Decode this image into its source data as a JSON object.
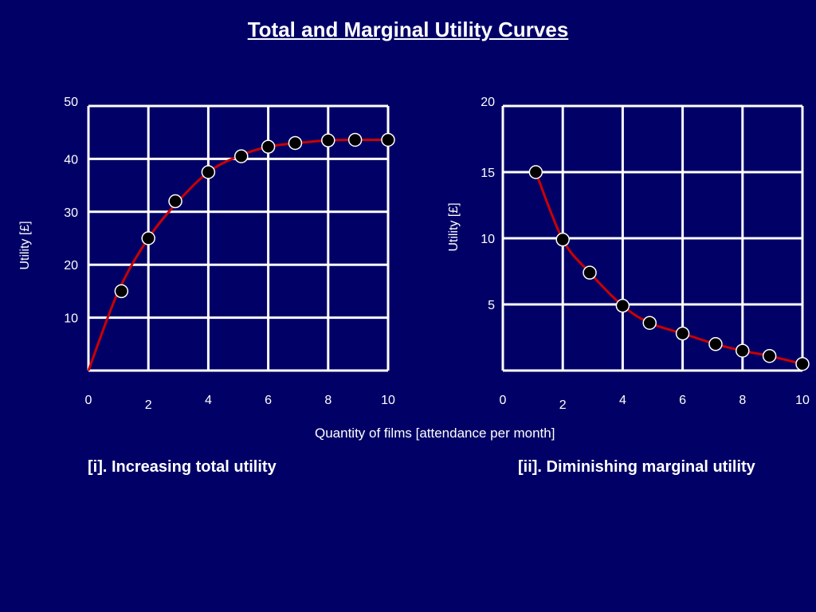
{
  "slide": {
    "title": "Total and Marginal Utility Curves",
    "shared_xlabel": "Quantity of films [attendance per month]",
    "captions": [
      "[i]. Increasing total utility",
      "[ii]. Diminishing marginal utility"
    ]
  },
  "colors": {
    "background": "#000066",
    "grid": "#ffffff",
    "curve": "#cc0000",
    "marker": "#000000",
    "text": "#ffffff"
  },
  "chart_data": [
    {
      "type": "line",
      "title": "[i]. Increasing total utility",
      "xlabel": "Quantity of films [attendance per month]",
      "ylabel": "Utility [£]",
      "xlim": [
        0,
        10
      ],
      "ylim": [
        0,
        50
      ],
      "x_ticks": [
        0,
        2,
        4,
        6,
        8,
        10
      ],
      "y_ticks": [
        10,
        20,
        30,
        40,
        50
      ],
      "grid": true,
      "curve": {
        "x": [
          0,
          1,
          2,
          3,
          4,
          5,
          6,
          7,
          8,
          9,
          10
        ],
        "y": [
          0,
          15,
          25,
          32,
          37.5,
          40.5,
          42.3,
          43,
          43.5,
          43.6,
          43.6
        ]
      },
      "markers": {
        "x": [
          1.1,
          2,
          2.9,
          4,
          5.1,
          6,
          6.9,
          8,
          8.9,
          10
        ],
        "y": [
          15,
          25,
          32,
          37.5,
          40.5,
          42.3,
          43,
          43.5,
          43.6,
          43.6
        ]
      }
    },
    {
      "type": "line",
      "title": "[ii]. Diminishing marginal utility",
      "xlabel": "Quantity of films [attendance per month]",
      "ylabel": "Utility [£]",
      "xlim": [
        0,
        10
      ],
      "ylim": [
        0,
        20
      ],
      "x_ticks": [
        0,
        2,
        4,
        6,
        8,
        10
      ],
      "y_ticks": [
        5,
        10,
        15,
        20
      ],
      "grid": true,
      "curve": {
        "x": [
          1.1,
          2,
          2.9,
          4,
          4.9,
          6,
          7.1,
          8,
          8.9,
          10
        ],
        "y": [
          15,
          9.9,
          7.4,
          4.9,
          3.6,
          2.8,
          2,
          1.5,
          1.1,
          0.5
        ]
      },
      "markers": {
        "x": [
          1.1,
          2,
          2.9,
          4,
          4.9,
          6,
          7.1,
          8,
          8.9,
          10
        ],
        "y": [
          15,
          9.9,
          7.4,
          4.9,
          3.6,
          2.8,
          2,
          1.5,
          1.1,
          0.5
        ]
      }
    }
  ]
}
